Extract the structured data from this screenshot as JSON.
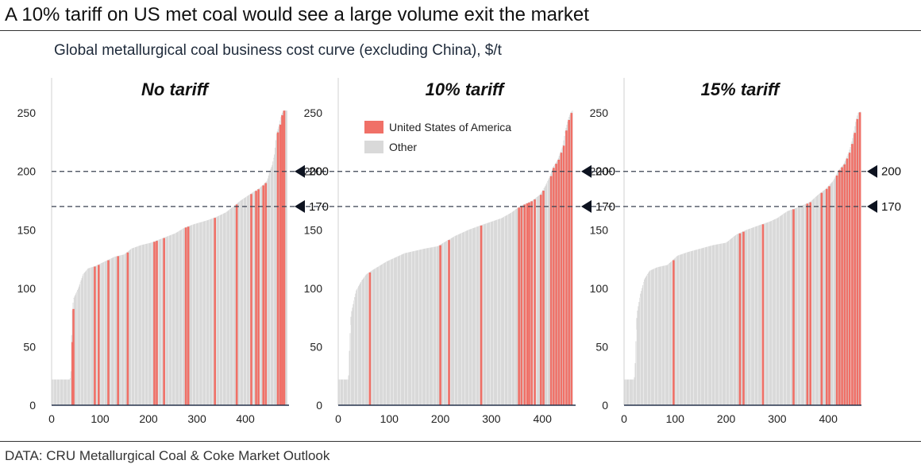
{
  "header": {
    "title": "A 10% tariff on US met coal would see a large volume exit the market",
    "subtitle": "Global metallurgical coal business cost curve (excluding China), $/t",
    "source": "DATA: CRU Metallurgical Coal & Coke Market Outlook"
  },
  "legend": {
    "us_label": "United States of America",
    "other_label": "Other",
    "us_color": "#f07067",
    "other_color": "#d9d9d9"
  },
  "reference_lines": [
    {
      "value": 200,
      "label": "200"
    },
    {
      "value": 170,
      "label": "170"
    }
  ],
  "chart_data": [
    {
      "type": "bar",
      "title": "No tariff",
      "ylim": [
        0,
        280
      ],
      "yticks": [
        0,
        50,
        100,
        150,
        200,
        250
      ],
      "xlim": [
        0,
        490
      ],
      "xticks": [
        0,
        100,
        200,
        300,
        400
      ],
      "cost_curve": [
        [
          0,
          22
        ],
        [
          38,
          22
        ],
        [
          40,
          30
        ],
        [
          42,
          78
        ],
        [
          45,
          91
        ],
        [
          55,
          100
        ],
        [
          65,
          112
        ],
        [
          75,
          117
        ],
        [
          90,
          119
        ],
        [
          110,
          123
        ],
        [
          130,
          127
        ],
        [
          150,
          129
        ],
        [
          165,
          134
        ],
        [
          185,
          137
        ],
        [
          205,
          139
        ],
        [
          230,
          143
        ],
        [
          255,
          147
        ],
        [
          275,
          152
        ],
        [
          295,
          155
        ],
        [
          320,
          158
        ],
        [
          340,
          161
        ],
        [
          360,
          165
        ],
        [
          375,
          170
        ],
        [
          390,
          175
        ],
        [
          415,
          182
        ],
        [
          430,
          186
        ],
        [
          445,
          192
        ],
        [
          450,
          200
        ],
        [
          455,
          205
        ],
        [
          460,
          215
        ],
        [
          464,
          232
        ],
        [
          470,
          240
        ],
        [
          474,
          248
        ],
        [
          478,
          252
        ],
        [
          485,
          252
        ]
      ],
      "us_positions": [
        41,
        43,
        87,
        95,
        115,
        135,
        155,
        210,
        215,
        230,
        275,
        280,
        335,
        380,
        410,
        420,
        425,
        435,
        440,
        465,
        470,
        474,
        478
      ]
    },
    {
      "type": "bar",
      "title": "10% tariff",
      "ylim": [
        0,
        280
      ],
      "yticks": [
        0,
        50,
        100,
        150,
        200,
        250
      ],
      "xlim": [
        0,
        465
      ],
      "xticks": [
        0,
        100,
        200,
        300,
        400
      ],
      "cost_curve": [
        [
          0,
          22
        ],
        [
          20,
          22
        ],
        [
          22,
          50
        ],
        [
          25,
          78
        ],
        [
          35,
          98
        ],
        [
          45,
          106
        ],
        [
          55,
          112
        ],
        [
          65,
          115
        ],
        [
          80,
          119
        ],
        [
          95,
          123
        ],
        [
          110,
          126
        ],
        [
          130,
          130
        ],
        [
          150,
          132
        ],
        [
          170,
          134
        ],
        [
          195,
          136
        ],
        [
          210,
          140
        ],
        [
          230,
          145
        ],
        [
          255,
          150
        ],
        [
          280,
          154
        ],
        [
          300,
          157
        ],
        [
          320,
          160
        ],
        [
          340,
          165
        ],
        [
          355,
          170
        ],
        [
          380,
          175
        ],
        [
          395,
          180
        ],
        [
          405,
          187
        ],
        [
          415,
          196
        ],
        [
          420,
          203
        ],
        [
          430,
          210
        ],
        [
          440,
          222
        ],
        [
          445,
          235
        ],
        [
          450,
          244
        ],
        [
          455,
          250
        ],
        [
          458,
          252
        ]
      ],
      "us_positions": [
        60,
        198,
        215,
        278,
        352,
        357,
        363,
        368,
        372,
        377,
        383,
        395,
        400,
        415,
        420,
        425,
        430,
        435,
        440,
        445,
        450,
        455
      ]
    },
    {
      "type": "bar",
      "title": "15% tariff",
      "ylim": [
        0,
        280
      ],
      "yticks": [
        0,
        50,
        100,
        150,
        200,
        250
      ],
      "xlim": [
        0,
        465
      ],
      "xticks": [
        0,
        100,
        200,
        300,
        400
      ],
      "cost_curve": [
        [
          0,
          22
        ],
        [
          20,
          22
        ],
        [
          22,
          38
        ],
        [
          25,
          78
        ],
        [
          32,
          95
        ],
        [
          40,
          108
        ],
        [
          50,
          115
        ],
        [
          65,
          118
        ],
        [
          85,
          120
        ],
        [
          105,
          128
        ],
        [
          125,
          131
        ],
        [
          150,
          134
        ],
        [
          175,
          137
        ],
        [
          200,
          139
        ],
        [
          220,
          146
        ],
        [
          240,
          150
        ],
        [
          265,
          154
        ],
        [
          285,
          157
        ],
        [
          300,
          160
        ],
        [
          320,
          166
        ],
        [
          345,
          170
        ],
        [
          365,
          174
        ],
        [
          380,
          180
        ],
        [
          395,
          185
        ],
        [
          410,
          192
        ],
        [
          420,
          201
        ],
        [
          430,
          206
        ],
        [
          440,
          216
        ],
        [
          446,
          225
        ],
        [
          450,
          233
        ],
        [
          454,
          243
        ],
        [
          458,
          250
        ],
        [
          462,
          251
        ]
      ],
      "us_positions": [
        95,
        225,
        232,
        270,
        330,
        357,
        363,
        385,
        395,
        400,
        415,
        420,
        425,
        430,
        435,
        440,
        445,
        450,
        455,
        460
      ]
    }
  ]
}
